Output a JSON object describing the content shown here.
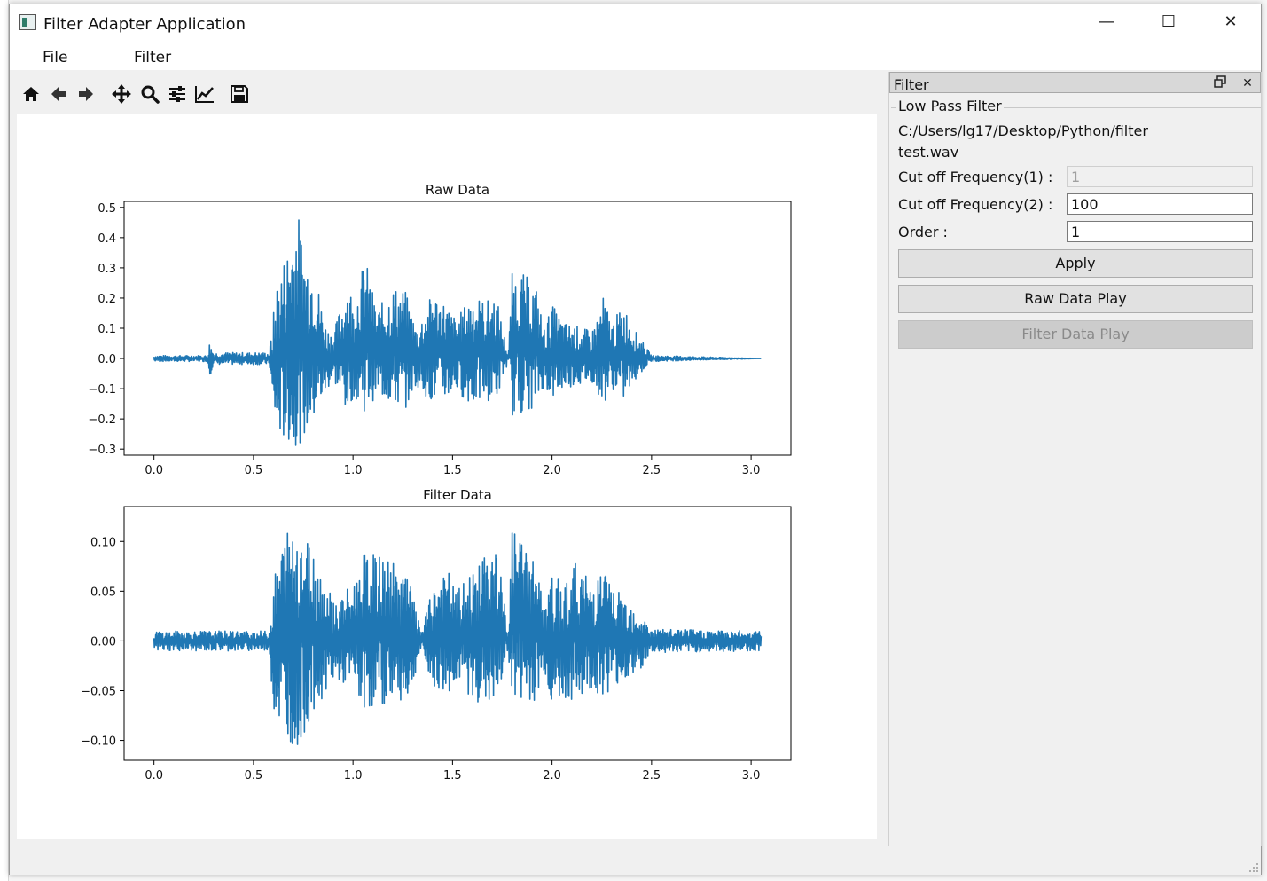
{
  "window": {
    "title": "Filter Adapter Application",
    "minimize_glyph": "—",
    "maximize_glyph": "☐",
    "close_glyph": "✕"
  },
  "menu": {
    "items": [
      "File",
      "Filter"
    ]
  },
  "toolbar": {
    "icons": [
      "home-icon",
      "back-arrow-icon",
      "forward-arrow-icon",
      "pan-icon",
      "zoom-icon",
      "subplots-config-icon",
      "edit-axes-icon",
      "save-icon"
    ]
  },
  "dock": {
    "title": "Filter",
    "group_title": "Low Pass Filter",
    "path_line1": "C:/Users/lg17/Desktop/Python/filter",
    "path_line2": "test.wav",
    "cutoff1_label": "Cut off Frequency(1) :",
    "cutoff1_value": "1",
    "cutoff2_label": "Cut off Frequency(2) :",
    "cutoff2_value": "100",
    "order_label": "Order :",
    "order_value": "1",
    "apply_label": "Apply",
    "raw_play_label": "Raw Data Play",
    "filter_play_label": "Filter Data Play"
  },
  "colors": {
    "series": "#1f77b4",
    "dock_title_bg": "#d8d8d8"
  },
  "chart_data": [
    {
      "type": "line",
      "title": "Raw Data",
      "xlabel": "",
      "ylabel": "",
      "xlim": [
        -0.15,
        3.2
      ],
      "ylim": [
        -0.32,
        0.52
      ],
      "xticks": [
        0.0,
        0.5,
        1.0,
        1.5,
        2.0,
        2.5,
        3.0
      ],
      "xtick_labels": [
        "0.0",
        "0.5",
        "1.0",
        "1.5",
        "2.0",
        "2.5",
        "3.0"
      ],
      "yticks": [
        -0.3,
        -0.2,
        -0.1,
        0.0,
        0.1,
        0.2,
        0.3,
        0.4,
        0.5
      ],
      "ytick_labels": [
        "−0.3",
        "−0.2",
        "−0.1",
        "0.0",
        "0.1",
        "0.2",
        "0.3",
        "0.4",
        "0.5"
      ],
      "series": [
        {
          "x": [
            0.0,
            0.27,
            0.28,
            0.3,
            0.58,
            0.6,
            0.62,
            0.66,
            0.72,
            0.76,
            0.8,
            0.86,
            0.9,
            0.98,
            1.0,
            1.06,
            1.12,
            1.2,
            1.26,
            1.32,
            1.4,
            1.46,
            1.52,
            1.6,
            1.66,
            1.72,
            1.78,
            1.8,
            1.86,
            1.92,
            1.96,
            2.0,
            2.06,
            2.12,
            2.2,
            2.26,
            2.3,
            2.36,
            2.42,
            2.5,
            3.05
          ],
          "upper": [
            0.01,
            0.01,
            0.06,
            0.02,
            0.02,
            0.15,
            0.27,
            0.35,
            0.5,
            0.35,
            0.33,
            0.12,
            0.08,
            0.28,
            0.17,
            0.34,
            0.16,
            0.24,
            0.23,
            0.1,
            0.22,
            0.19,
            0.13,
            0.22,
            0.19,
            0.21,
            0.01,
            0.29,
            0.28,
            0.24,
            0.1,
            0.18,
            0.12,
            0.11,
            0.09,
            0.21,
            0.12,
            0.18,
            0.09,
            0.01,
            0.0
          ],
          "lower": [
            -0.01,
            -0.01,
            -0.06,
            -0.02,
            -0.02,
            -0.2,
            -0.26,
            -0.28,
            -0.29,
            -0.26,
            -0.22,
            -0.12,
            -0.07,
            -0.2,
            -0.12,
            -0.18,
            -0.12,
            -0.16,
            -0.17,
            -0.09,
            -0.15,
            -0.14,
            -0.11,
            -0.16,
            -0.14,
            -0.14,
            -0.01,
            -0.19,
            -0.18,
            -0.16,
            -0.09,
            -0.14,
            -0.1,
            -0.09,
            -0.08,
            -0.15,
            -0.1,
            -0.14,
            -0.07,
            -0.01,
            0.0
          ]
        }
      ]
    },
    {
      "type": "line",
      "title": "Filter Data",
      "xlabel": "",
      "ylabel": "",
      "xlim": [
        -0.15,
        3.2
      ],
      "ylim": [
        -0.12,
        0.135
      ],
      "xticks": [
        0.0,
        0.5,
        1.0,
        1.5,
        2.0,
        2.5,
        3.0
      ],
      "xtick_labels": [
        "0.0",
        "0.5",
        "1.0",
        "1.5",
        "2.0",
        "2.5",
        "3.0"
      ],
      "yticks": [
        -0.1,
        -0.05,
        0.0,
        0.05,
        0.1
      ],
      "ytick_labels": [
        "−0.10",
        "−0.05",
        "0.00",
        "0.05",
        "0.10"
      ],
      "series": [
        {
          "x": [
            0.0,
            0.58,
            0.6,
            0.64,
            0.68,
            0.72,
            0.76,
            0.8,
            0.86,
            0.92,
            1.0,
            1.06,
            1.14,
            1.2,
            1.28,
            1.34,
            1.42,
            1.48,
            1.52,
            1.6,
            1.66,
            1.72,
            1.78,
            1.8,
            1.86,
            1.92,
            1.96,
            2.0,
            2.06,
            2.12,
            2.2,
            2.26,
            2.32,
            2.38,
            2.44,
            2.5,
            3.05
          ],
          "upper": [
            0.01,
            0.01,
            0.06,
            0.1,
            0.12,
            0.13,
            0.11,
            0.095,
            0.06,
            0.04,
            0.06,
            0.09,
            0.085,
            0.08,
            0.065,
            0.01,
            0.065,
            0.07,
            0.05,
            0.07,
            0.085,
            0.1,
            0.01,
            0.115,
            0.1,
            0.085,
            0.03,
            0.065,
            0.06,
            0.08,
            0.06,
            0.075,
            0.05,
            0.045,
            0.03,
            0.012,
            0.01
          ],
          "lower": [
            -0.01,
            -0.01,
            -0.07,
            -0.09,
            -0.1,
            -0.11,
            -0.09,
            -0.08,
            -0.05,
            -0.04,
            -0.05,
            -0.07,
            -0.065,
            -0.06,
            -0.06,
            -0.01,
            -0.055,
            -0.055,
            -0.04,
            -0.06,
            -0.065,
            -0.07,
            -0.01,
            -0.065,
            -0.065,
            -0.06,
            -0.03,
            -0.07,
            -0.06,
            -0.06,
            -0.05,
            -0.055,
            -0.045,
            -0.04,
            -0.03,
            -0.012,
            -0.01
          ]
        }
      ]
    }
  ]
}
